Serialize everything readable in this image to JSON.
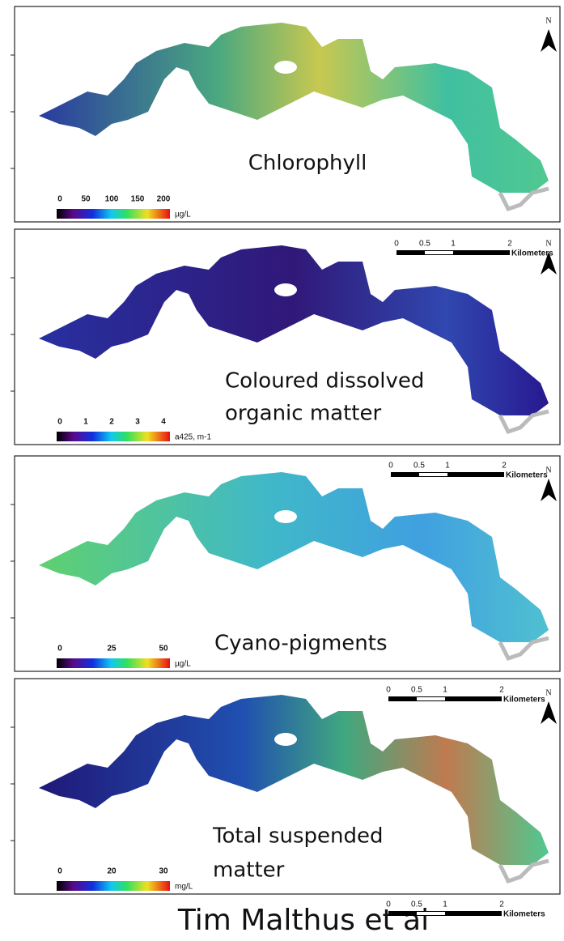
{
  "panels": [
    {
      "label_lines": [
        "Chlorophyll"
      ],
      "legend": {
        "ticks": [
          0,
          50,
          100,
          150,
          200
        ],
        "unit": "µg/L"
      },
      "north": "N"
    },
    {
      "label_lines": [
        "Coloured dissolved",
        "organic matter"
      ],
      "legend": {
        "ticks": [
          0,
          1,
          2,
          3,
          4
        ],
        "unit": "a425, m-1"
      },
      "scale_bar": {
        "ticks": [
          0,
          0.5,
          1,
          2
        ],
        "unit": "Kilometers"
      },
      "north": "N"
    },
    {
      "label_lines": [
        "Cyano-pigments"
      ],
      "legend": {
        "ticks": [
          0,
          25,
          50
        ],
        "unit": "µg/L"
      },
      "scale_bar": {
        "ticks": [
          0,
          0.5,
          1,
          2
        ],
        "unit": "Kilometers"
      },
      "north": "N"
    },
    {
      "label_lines": [
        "Total suspended",
        "matter"
      ],
      "legend": {
        "ticks": [
          0,
          20,
          30
        ],
        "unit": "mg/L"
      },
      "scale_bar": {
        "ticks": [
          0,
          0.5,
          1,
          2
        ],
        "unit": "Kilometers"
      },
      "north": "N"
    }
  ],
  "footer": {
    "credit": "Tim Malthus et al",
    "scale_bar": {
      "ticks": [
        0,
        0.5,
        1,
        2
      ],
      "unit": "Kilometers"
    }
  }
}
